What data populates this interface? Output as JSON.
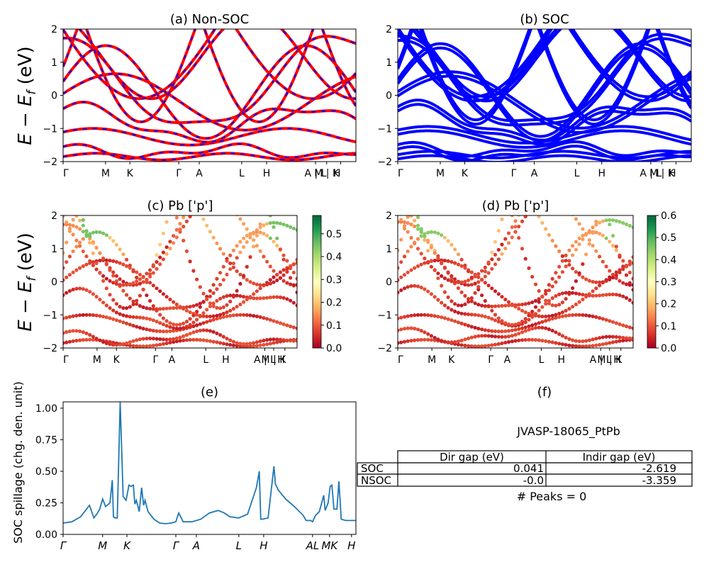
{
  "figure": {
    "ylabel_main": "E − E",
    "ylabel_sub": "f",
    "ylabel_unit": " (eV)"
  },
  "colors": {
    "nonsoc_line": "#ff0000",
    "nonsoc_dash": "#0000ff",
    "soc_line": "#0000ff",
    "spillage_line": "#1f77b4",
    "colormap": [
      "#a50026",
      "#d73027",
      "#f46d43",
      "#fdae61",
      "#fee08b",
      "#ffffbf",
      "#d9ef8b",
      "#a6d96a",
      "#66bd63",
      "#1a9850",
      "#006837"
    ]
  },
  "chart_data": [
    {
      "id": "a",
      "type": "line",
      "title": "(a) Non-SOC",
      "ylim": [
        -2,
        2
      ],
      "yticks": [
        "2",
        "1",
        "0",
        "−1",
        "−2"
      ],
      "xticks": [
        "Γ",
        "M",
        "K",
        "Γ",
        "A",
        "L",
        "H",
        "A | L",
        "M | K",
        "H"
      ],
      "kpoints": [
        0.0,
        0.145,
        0.228,
        0.395,
        0.465,
        0.61,
        0.695,
        0.862,
        0.9,
        0.948,
        1.0
      ],
      "series_style": "red solid with blue dashes"
    },
    {
      "id": "b",
      "type": "line",
      "title": "(b) SOC",
      "ylim": [
        -2,
        2
      ],
      "yticks": [
        "2",
        "1",
        "0",
        "−1",
        "−2"
      ],
      "xticks": [
        "Γ",
        "M",
        "K",
        "Γ",
        "A",
        "L",
        "H",
        "A | L",
        "M | K",
        "H"
      ],
      "series_style": "blue solid"
    },
    {
      "id": "c",
      "type": "scatter",
      "title": "(c)  Pb ['p']",
      "ylim": [
        -2,
        2
      ],
      "yticks": [
        "2",
        "1",
        "0",
        "−1",
        "−2"
      ],
      "xticks": [
        "Γ",
        "M",
        "K",
        "Γ",
        "A",
        "L",
        "H",
        "A | L",
        "M | K",
        "H"
      ],
      "colorbar": {
        "range": [
          0,
          0.58
        ],
        "ticks": [
          "0.0",
          "0.1",
          "0.2",
          "0.3",
          "0.4",
          "0.5"
        ],
        "tick_values": [
          0,
          0.1,
          0.2,
          0.3,
          0.4,
          0.5
        ]
      }
    },
    {
      "id": "d",
      "type": "scatter",
      "title": "(d) Pb ['p']",
      "ylim": [
        -2,
        2
      ],
      "yticks": [
        "2",
        "1",
        "0",
        "−1",
        "−2"
      ],
      "xticks": [
        "Γ",
        "M",
        "K",
        "Γ",
        "A",
        "L",
        "H",
        "A | L",
        "M | K",
        "H"
      ],
      "colorbar": {
        "range": [
          0,
          0.6
        ],
        "ticks": [
          "0.0",
          "0.1",
          "0.2",
          "0.3",
          "0.4",
          "0.5",
          "0.6"
        ],
        "tick_values": [
          0,
          0.1,
          0.2,
          0.3,
          0.4,
          0.5,
          0.6
        ]
      }
    },
    {
      "id": "e",
      "type": "line",
      "title": "(e)",
      "ylabel": "SOC spillage (chg. den. unit)",
      "ylim": [
        0,
        1.05
      ],
      "yticks": [
        "0.00",
        "0.25",
        "0.50",
        "0.75",
        "1.00"
      ],
      "ytick_values": [
        0,
        0.25,
        0.5,
        0.75,
        1.0
      ],
      "xticks": [
        "Γ",
        "M",
        "K",
        "Γ",
        "A",
        "L",
        "H",
        "AL",
        "MK",
        "H"
      ],
      "xtick_positions": [
        0.0,
        0.135,
        0.218,
        0.385,
        0.455,
        0.6,
        0.685,
        0.852,
        0.91,
        0.985
      ],
      "x": [
        0.0,
        0.03,
        0.06,
        0.09,
        0.105,
        0.115,
        0.125,
        0.135,
        0.145,
        0.155,
        0.16,
        0.168,
        0.172,
        0.178,
        0.185,
        0.195,
        0.205,
        0.215,
        0.225,
        0.232,
        0.24,
        0.245,
        0.25,
        0.26,
        0.268,
        0.275,
        0.28,
        0.29,
        0.31,
        0.33,
        0.35,
        0.37,
        0.385,
        0.395,
        0.41,
        0.425,
        0.43,
        0.44,
        0.47,
        0.5,
        0.53,
        0.55,
        0.57,
        0.6,
        0.63,
        0.66,
        0.67,
        0.675,
        0.68,
        0.7,
        0.72,
        0.725,
        0.735,
        0.76,
        0.79,
        0.82,
        0.83,
        0.845,
        0.852,
        0.862,
        0.875,
        0.89,
        0.895,
        0.905,
        0.912,
        0.918,
        0.925,
        0.935,
        0.942,
        0.95,
        0.965,
        0.985,
        1.0
      ],
      "values": [
        0.09,
        0.1,
        0.14,
        0.23,
        0.13,
        0.16,
        0.2,
        0.28,
        0.22,
        0.24,
        0.25,
        0.43,
        0.14,
        0.13,
        0.13,
        1.05,
        0.3,
        0.27,
        0.39,
        0.38,
        0.39,
        0.24,
        0.27,
        0.18,
        0.37,
        0.23,
        0.27,
        0.18,
        0.12,
        0.09,
        0.085,
        0.09,
        0.1,
        0.17,
        0.1,
        0.1,
        0.1,
        0.1,
        0.12,
        0.17,
        0.19,
        0.17,
        0.14,
        0.13,
        0.16,
        0.37,
        0.5,
        0.12,
        0.12,
        0.13,
        0.54,
        0.4,
        0.35,
        0.28,
        0.22,
        0.15,
        0.11,
        0.11,
        0.1,
        0.15,
        0.18,
        0.31,
        0.19,
        0.25,
        0.38,
        0.39,
        0.2,
        0.2,
        0.42,
        0.12,
        0.11,
        0.11,
        0.11
      ]
    },
    {
      "id": "f",
      "type": "table",
      "title": "(f)",
      "name": "JVASP-18065_PtPb",
      "columns": [
        "Dir gap (eV)",
        "Indir gap (eV)"
      ],
      "rows": [
        {
          "label": "SOC",
          "dir": "0.041",
          "indir": "-2.619"
        },
        {
          "label": "NSOC",
          "dir": "-0.0",
          "indir": "-3.359"
        }
      ],
      "peaks": "# Peaks = 0"
    }
  ]
}
